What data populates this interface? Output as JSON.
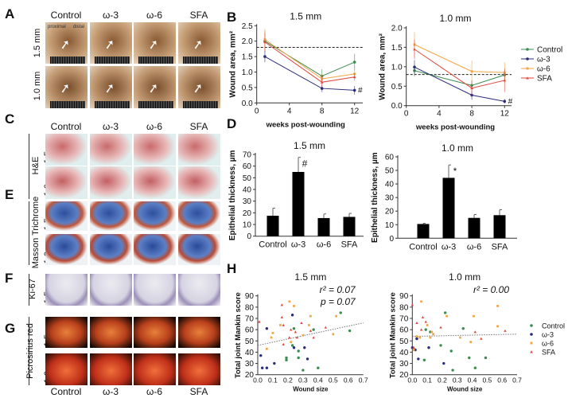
{
  "panels": {
    "A": "A",
    "B": "B",
    "C": "C",
    "D": "D",
    "E": "E",
    "F": "F",
    "G": "G",
    "H": "H"
  },
  "groups": [
    "Control",
    "ω-3",
    "ω-6",
    "SFA"
  ],
  "sizes": {
    "s15": "1.5 mm",
    "s10": "1.0 mm"
  },
  "stains": {
    "he": "H&E",
    "masson": "Masson Trichrome",
    "ki67": "Ki-67",
    "picro": "Picrosirius red"
  },
  "panel_a": {
    "proximal": "proximal",
    "distal": "distal"
  },
  "colors": {
    "Control": "#3c8c50",
    "ω-3": "#2a2c78",
    "ω-6": "#f2a443",
    "SFA": "#e0443c"
  },
  "chart_data": [
    {
      "id": "B1",
      "type": "line",
      "title": "1.5 mm",
      "xlabel": "weeks post-wounding",
      "ylabel": "Wound area, mm²",
      "x": [
        1,
        8,
        12
      ],
      "xlim": [
        0,
        13
      ],
      "xticks": [
        0,
        4,
        8,
        12
      ],
      "ylim": [
        0,
        2.5
      ],
      "yticks": [
        "0.0",
        "0.5",
        "1.0",
        "1.5",
        "2.0",
        "2.5"
      ],
      "reference_line": 1.8,
      "annotation": "#",
      "series": [
        {
          "name": "Control",
          "values": [
            2.0,
            0.87,
            1.32
          ],
          "err": [
            0.35,
            0.22,
            0.27
          ]
        },
        {
          "name": "ω-3",
          "values": [
            1.5,
            0.47,
            0.41
          ],
          "err": [
            0.18,
            0.12,
            0.14
          ]
        },
        {
          "name": "ω-6",
          "values": [
            2.05,
            0.78,
            0.94
          ],
          "err": [
            0.35,
            0.15,
            0.15
          ]
        },
        {
          "name": "SFA",
          "values": [
            1.97,
            0.67,
            0.84
          ],
          "err": [
            0.3,
            0.15,
            0.12
          ]
        }
      ]
    },
    {
      "id": "B2",
      "type": "line",
      "title": "1.0 mm",
      "xlabel": "weeks post-wounding",
      "ylabel": "Wound area, mm²",
      "x": [
        1,
        8,
        12
      ],
      "xlim": [
        0,
        13
      ],
      "xticks": [
        0,
        4,
        8,
        12
      ],
      "ylim": [
        0,
        2.0
      ],
      "yticks": [
        "0.0",
        "0.5",
        "1.0",
        "1.5",
        "2.0"
      ],
      "reference_line": 0.8,
      "annotation": "#",
      "legend": "right",
      "series": [
        {
          "name": "Control",
          "values": [
            0.9,
            0.52,
            0.79
          ],
          "err": [
            0.15,
            0.12,
            0.1
          ]
        },
        {
          "name": "ω-3",
          "values": [
            0.99,
            0.27,
            0.11
          ],
          "err": [
            0.18,
            0.12,
            0.06
          ]
        },
        {
          "name": "ω-6",
          "values": [
            1.57,
            0.88,
            0.85
          ],
          "err": [
            0.32,
            0.28,
            0.26
          ]
        },
        {
          "name": "SFA",
          "values": [
            1.45,
            0.45,
            0.65
          ],
          "err": [
            0.25,
            0.2,
            0.3
          ]
        }
      ]
    },
    {
      "id": "D1",
      "type": "bar",
      "title": "1.5 mm",
      "ylabel": "Epithelial thickness, µm",
      "categories": [
        "Control",
        "ω-3",
        "ω-6",
        "SFA"
      ],
      "values": [
        17.5,
        55,
        15.5,
        16.5
      ],
      "err": [
        6.5,
        12.5,
        3.5,
        3
      ],
      "ylim": [
        0,
        70
      ],
      "yticks": [
        "0",
        "10",
        "20",
        "30",
        "40",
        "50",
        "60",
        "70"
      ],
      "annotation": "#",
      "annotated_index": 1
    },
    {
      "id": "D2",
      "type": "bar",
      "title": "1.0 mm",
      "ylabel": "Epithelial thickness, µm",
      "categories": [
        "Control",
        "ω-3",
        "ω-6",
        "SFA"
      ],
      "values": [
        10.5,
        44.5,
        15,
        17
      ],
      "err": [
        0.5,
        9.5,
        2.5,
        4
      ],
      "ylim": [
        0,
        60
      ],
      "yticks": [
        "0",
        "10",
        "20",
        "30",
        "40",
        "50",
        "60"
      ],
      "annotation": "*",
      "annotated_index": 1
    },
    {
      "id": "H1",
      "type": "scatter",
      "title": "1.5 mm",
      "xlabel": "Wound size",
      "ylabel": "Total joint Mankin score",
      "xlim": [
        0,
        0.7
      ],
      "ylim": [
        20,
        90
      ],
      "xticks": [
        "0.0",
        "0.1",
        "0.2",
        "0.3",
        "0.4",
        "0.5",
        "0.6",
        "0.7"
      ],
      "yticks": [
        "20",
        "30",
        "40",
        "50",
        "60",
        "70",
        "80",
        "90"
      ],
      "stats": [
        "r² = 0.07",
        "p = 0.07"
      ],
      "trend": [
        [
          0,
          46
        ],
        [
          0.7,
          66
        ]
      ],
      "series": [
        {
          "name": "Control",
          "points": [
            [
              0.19,
              35
            ],
            [
              0.19,
              33
            ],
            [
              0.23,
              46
            ],
            [
              0.24,
              61
            ],
            [
              0.27,
              41
            ],
            [
              0.27,
              35
            ],
            [
              0.3,
              24
            ],
            [
              0.37,
              60
            ],
            [
              0.4,
              26
            ],
            [
              0.55,
              75
            ],
            [
              0.61,
              59
            ]
          ]
        },
        {
          "name": "ω-3",
          "points": [
            [
              0.02,
              37
            ],
            [
              0.03,
              26
            ],
            [
              0.06,
              26
            ],
            [
              0.06,
              61
            ],
            [
              0.11,
              30
            ],
            [
              0.23,
              73
            ],
            [
              0.24,
              44
            ],
            [
              0.31,
              44
            ],
            [
              0.33,
              34
            ]
          ]
        },
        {
          "name": "ω-6",
          "points": [
            [
              0.06,
              43
            ],
            [
              0.09,
              53
            ],
            [
              0.1,
              57
            ],
            [
              0.15,
              64
            ],
            [
              0.21,
              85
            ],
            [
              0.22,
              49
            ],
            [
              0.24,
              81
            ],
            [
              0.3,
              55
            ],
            [
              0.34,
              64
            ],
            [
              0.35,
              72
            ],
            [
              0.5,
              56
            ],
            [
              0.52,
              72
            ]
          ]
        },
        {
          "name": "SFA",
          "points": [
            [
              0.01,
              67
            ],
            [
              0.16,
              82
            ],
            [
              0.16,
              71
            ],
            [
              0.17,
              64
            ],
            [
              0.17,
              47
            ],
            [
              0.21,
              53
            ],
            [
              0.22,
              60
            ],
            [
              0.25,
              58
            ],
            [
              0.26,
              53
            ],
            [
              0.29,
              66
            ],
            [
              0.35,
              59
            ],
            [
              0.37,
              53
            ],
            [
              0.45,
              62
            ]
          ]
        }
      ]
    },
    {
      "id": "H2",
      "type": "scatter",
      "title": "1.0 mm",
      "xlabel": "Wound size",
      "ylabel": "Total joint Mankin score",
      "xlim": [
        0,
        0.7
      ],
      "ylim": [
        20,
        90
      ],
      "xticks": [
        "0.0",
        "0.1",
        "0.2",
        "0.3",
        "0.4",
        "0.5",
        "0.6",
        "0.7"
      ],
      "yticks": [
        "20",
        "30",
        "40",
        "50",
        "60",
        "70",
        "80",
        "90"
      ],
      "stats": [
        "r² = 0.00"
      ],
      "trend": [
        [
          0,
          54
        ],
        [
          0.7,
          56
        ]
      ],
      "legend": "right",
      "series": [
        {
          "name": "Control",
          "points": [
            [
              0.03,
              52
            ],
            [
              0.08,
              33
            ],
            [
              0.09,
              60
            ],
            [
              0.12,
              58
            ],
            [
              0.19,
              46
            ],
            [
              0.22,
              75
            ],
            [
              0.26,
              41
            ],
            [
              0.27,
              24
            ],
            [
              0.34,
              61
            ],
            [
              0.38,
              35
            ],
            [
              0.42,
              26
            ],
            [
              0.49,
              35
            ]
          ]
        },
        {
          "name": "ω-3",
          "points": [
            [
              0.0,
              44
            ],
            [
              0.02,
              42
            ],
            [
              0.03,
              52
            ],
            [
              0.04,
              34
            ],
            [
              0.11,
              44
            ],
            [
              0.21,
              30
            ]
          ]
        },
        {
          "name": "ω-6",
          "points": [
            [
              0.01,
              42
            ],
            [
              0.03,
              54
            ],
            [
              0.05,
              53
            ],
            [
              0.06,
              85
            ],
            [
              0.1,
              64
            ],
            [
              0.12,
              53
            ],
            [
              0.13,
              58
            ],
            [
              0.14,
              56
            ],
            [
              0.23,
              72
            ],
            [
              0.32,
              53
            ],
            [
              0.39,
              49
            ],
            [
              0.41,
              72
            ],
            [
              0.57,
              81
            ],
            [
              0.57,
              63
            ]
          ]
        },
        {
          "name": "SFA",
          "points": [
            [
              0.0,
              82
            ],
            [
              0.01,
              44
            ],
            [
              0.03,
              66
            ],
            [
              0.06,
              60
            ],
            [
              0.07,
              71
            ],
            [
              0.09,
              67
            ],
            [
              0.19,
              62
            ],
            [
              0.42,
              58
            ],
            [
              0.46,
              52
            ],
            [
              0.62,
              59
            ]
          ]
        }
      ]
    }
  ]
}
